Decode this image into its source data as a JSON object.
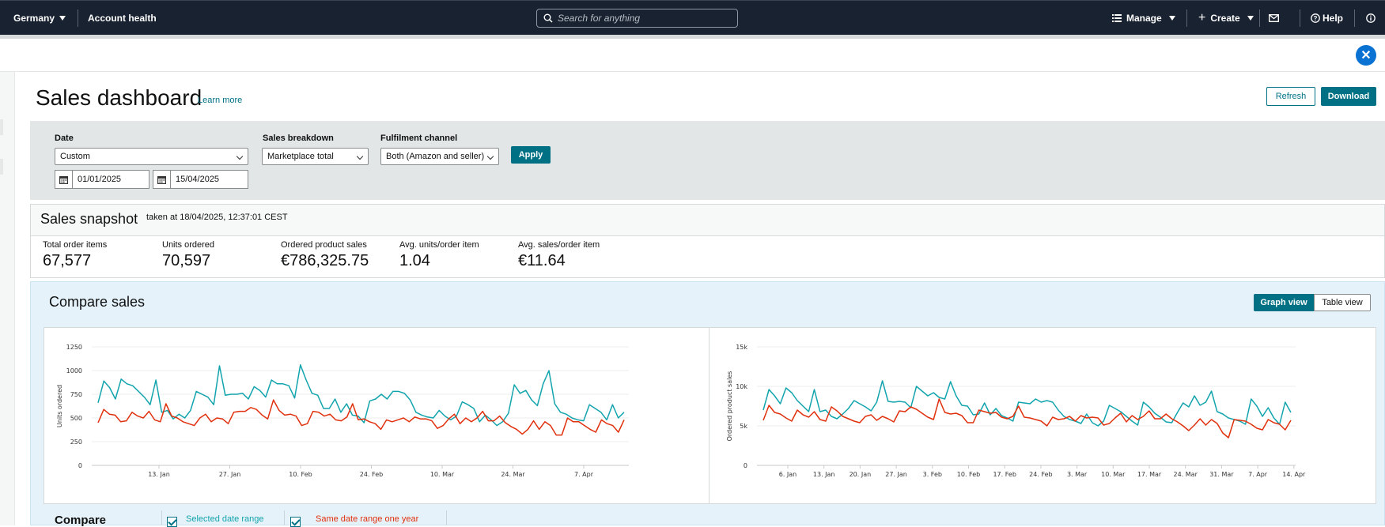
{
  "nav": {
    "marketplace": "Germany",
    "account_health": "Account health",
    "search_placeholder": "Search for anything",
    "manage": "Manage",
    "create": "Create",
    "help": "Help"
  },
  "page": {
    "title": "Sales dashboard",
    "learn_more": "Learn more",
    "refresh": "Refresh",
    "download": "Download"
  },
  "filters": {
    "date_label": "Date",
    "date_value": "Custom",
    "date_from": "01/01/2025",
    "date_to": "15/04/2025",
    "breakdown_label": "Sales breakdown",
    "breakdown_value": "Marketplace total",
    "channel_label": "Fulfilment channel",
    "channel_value": "Both (Amazon and seller)",
    "apply": "Apply"
  },
  "snapshot": {
    "title": "Sales snapshot",
    "taken": "taken at 18/04/2025, 12:37:01 CEST",
    "metrics": [
      {
        "label": "Total order items",
        "value": "67,577"
      },
      {
        "label": "Units ordered",
        "value": "70,597"
      },
      {
        "label": "Ordered product sales",
        "value": "€786,325.75"
      },
      {
        "label": "Avg. units/order item",
        "value": "1.04"
      },
      {
        "label": "Avg. sales/order item",
        "value": "€11.64"
      }
    ]
  },
  "compare": {
    "title": "Compare sales",
    "graph_view": "Graph view",
    "table_view": "Table view",
    "compare_label": "Compare",
    "legend": {
      "selected": "Selected date range",
      "previous": "Same date range one year"
    },
    "colors": {
      "selected": "#12a4ad",
      "previous": "#e0300d"
    }
  },
  "chart_data": [
    {
      "type": "line",
      "ylabel": "Units ordered",
      "ylim": [
        0,
        1250
      ],
      "yticks": [
        "0",
        "250",
        "500",
        "750",
        "1000",
        "1250"
      ],
      "xticks": [
        "13. Jan",
        "27. Jan",
        "10. Feb",
        "24. Feb",
        "10. Mar",
        "24. Mar",
        "7. Apr"
      ],
      "series": [
        {
          "key": "selected",
          "values": [
            660,
            890,
            820,
            700,
            910,
            860,
            840,
            780,
            720,
            640,
            900,
            560,
            580,
            490,
            540,
            500,
            580,
            780,
            750,
            720,
            640,
            1050,
            740,
            750,
            750,
            760,
            700,
            830,
            790,
            720,
            900,
            860,
            860,
            840,
            710,
            1060,
            900,
            760,
            740,
            600,
            600,
            700,
            560,
            650,
            530,
            520,
            450,
            680,
            700,
            750,
            700,
            780,
            780,
            760,
            690,
            560,
            530,
            510,
            500,
            580,
            520,
            480,
            520,
            670,
            640,
            600,
            460,
            530,
            480,
            420,
            460,
            550,
            850,
            760,
            790,
            690,
            630,
            860,
            1000,
            650,
            560,
            540,
            500,
            480,
            470,
            640,
            600,
            560,
            480,
            640,
            500,
            560
          ]
        },
        {
          "key": "previous",
          "values": [
            450,
            590,
            540,
            530,
            460,
            470,
            560,
            520,
            500,
            570,
            480,
            460,
            650,
            520,
            500,
            460,
            440,
            420,
            500,
            540,
            460,
            500,
            490,
            440,
            560,
            570,
            570,
            610,
            590,
            530,
            490,
            690,
            580,
            530,
            540,
            520,
            420,
            440,
            570,
            560,
            520,
            540,
            480,
            470,
            510,
            650,
            480,
            490,
            460,
            440,
            380,
            480,
            460,
            480,
            500,
            460,
            510,
            490,
            490,
            470,
            390,
            420,
            490,
            540,
            440,
            500,
            460,
            500,
            570,
            470,
            470,
            520,
            450,
            410,
            380,
            330,
            380,
            470,
            380,
            460,
            420,
            320,
            320,
            500,
            460,
            460,
            420,
            380,
            350,
            480,
            440,
            420,
            350,
            480
          ]
        }
      ]
    },
    {
      "type": "line",
      "ylabel": "Ordered product sales",
      "ylim": [
        0,
        15000
      ],
      "yticks": [
        "0",
        "5k",
        "10k",
        "15k"
      ],
      "xticks": [
        "6. Jan",
        "13. Jan",
        "20. Jan",
        "27. Jan",
        "3. Feb",
        "10. Feb",
        "17. Feb",
        "24. Feb",
        "3. Mar",
        "10. Mar",
        "17. Mar",
        "24. Mar",
        "31. Mar",
        "7. Apr",
        "14. Apr"
      ],
      "series": [
        {
          "key": "selected",
          "values": [
            7000,
            9600,
            8800,
            7800,
            9800,
            9200,
            8200,
            7500,
            6800,
            9600,
            6800,
            7000,
            6200,
            5900,
            6500,
            7200,
            8200,
            7800,
            7400,
            6900,
            8000,
            10700,
            8100,
            8000,
            8100,
            8000,
            7300,
            10000,
            9400,
            8800,
            9200,
            8600,
            8400,
            10600,
            8800,
            7600,
            7500,
            6400,
            6500,
            7900,
            6400,
            7200,
            6300,
            6000,
            5600,
            8000,
            7900,
            7800,
            8400,
            8000,
            8200,
            8000,
            7000,
            6200,
            5800,
            5600,
            5300,
            6500,
            5400,
            5000,
            5600,
            7600,
            7200,
            6800,
            6200,
            5600,
            5100,
            8000,
            7400,
            6600,
            6100,
            5500,
            5400,
            6700,
            7900,
            7400,
            8800,
            7600,
            8000,
            9400,
            6800,
            6500,
            6000,
            5800,
            5600,
            5200,
            8400,
            7500,
            6200,
            7300,
            6000,
            5200,
            8000,
            6700
          ]
        },
        {
          "key": "previous",
          "values": [
            5700,
            7600,
            6700,
            6500,
            6000,
            5600,
            7000,
            6400,
            6100,
            6800,
            5800,
            5600,
            7400,
            6900,
            6200,
            5900,
            5600,
            5400,
            6200,
            6400,
            5700,
            6200,
            5900,
            5500,
            6900,
            6800,
            7400,
            7100,
            6600,
            6100,
            5800,
            8400,
            6700,
            6500,
            6600,
            6300,
            5400,
            5400,
            7000,
            6800,
            6600,
            6700,
            6100,
            5900,
            6200,
            7500,
            6100,
            6000,
            5800,
            5600,
            5000,
            6100,
            5800,
            5900,
            6200,
            5600,
            6300,
            6000,
            6100,
            6000,
            5100,
            5300,
            6000,
            6600,
            5500,
            6300,
            5800,
            6200,
            6900,
            5900,
            5900,
            6500,
            5900,
            5500,
            5000,
            4400,
            5100,
            5900,
            5100,
            5800,
            5300,
            4100,
            3500,
            5800,
            5700,
            5600,
            5200,
            4700,
            4500,
            5800,
            5400,
            5200,
            4500,
            5700
          ]
        }
      ]
    }
  ]
}
